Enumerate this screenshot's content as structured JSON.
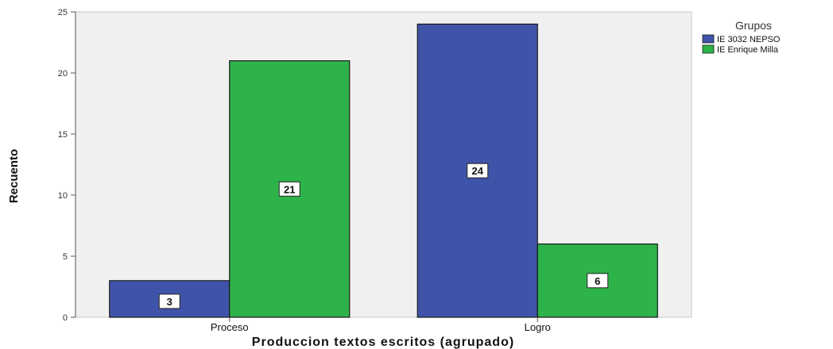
{
  "chart_data": {
    "type": "bar",
    "title": "",
    "xlabel": "Produccion textos escritos (agrupado)",
    "ylabel": "Recuento",
    "categories": [
      "Proceso",
      "Logro"
    ],
    "series": [
      {
        "name": "IE 3032 NEPSO",
        "color": "#3f54a8",
        "values": [
          3,
          24
        ]
      },
      {
        "name": "IE Enrique Milla",
        "color": "#2db34a",
        "values": [
          21,
          6
        ]
      }
    ],
    "ylim": [
      0,
      25
    ],
    "yticks": [
      0,
      5,
      10,
      15,
      20,
      25
    ],
    "ytick_labels": [
      "0",
      "5",
      "10",
      "15",
      "20",
      "25"
    ],
    "legend": {
      "title": "Grupos",
      "placement": "top-right"
    },
    "background": "#f0f0f0",
    "grid": false
  }
}
